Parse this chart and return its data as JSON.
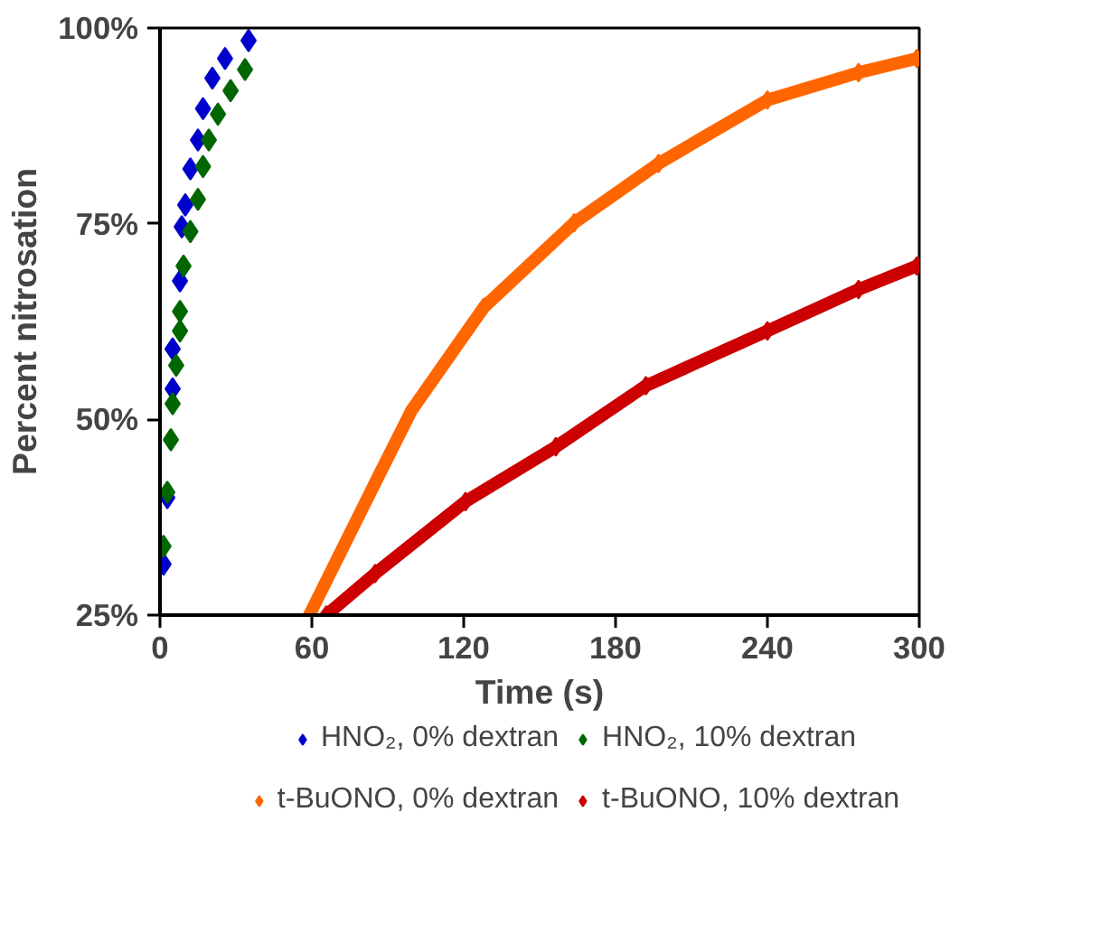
{
  "chart_data": {
    "type": "scatter",
    "xlabel": "Time (s)",
    "ylabel": "Percent nitrosation",
    "xlim": [
      0,
      300
    ],
    "xticks": [
      0,
      60,
      120,
      180,
      240,
      300
    ],
    "ylim": [
      25,
      100
    ],
    "yticks": [
      {
        "value": 25,
        "label": "25%"
      },
      {
        "value": 50,
        "label": "50%"
      },
      {
        "value": 75,
        "label": "75%"
      },
      {
        "value": 100,
        "label": "100%"
      }
    ],
    "grid": false,
    "legend": "bottom",
    "marker": "diamond",
    "series": [
      {
        "name": "HNO₂, 0% dextran",
        "color": "#0000cc",
        "x": [
          1.4,
          2.9,
          5,
          5,
          7.9,
          8.6,
          10,
          12,
          15,
          17,
          20.7,
          25.7,
          35
        ],
        "values": [
          31.5,
          40,
          53.9,
          59,
          67.7,
          74.6,
          77.4,
          82,
          85.7,
          89.7,
          93.6,
          96.1,
          98.4
        ]
      },
      {
        "name": "HNO₂, 10% dextran",
        "color": "#006600",
        "x": [
          1.4,
          2.9,
          4.3,
          5,
          6.4,
          7.9,
          7.9,
          9.3,
          12,
          15,
          17,
          19.3,
          22.9,
          27.9,
          33.6
        ],
        "values": [
          33.8,
          40.7,
          47.4,
          52,
          56.9,
          61.3,
          63.8,
          69.6,
          74,
          78.1,
          82.3,
          85.7,
          89,
          92,
          94.7
        ]
      },
      {
        "name": "t-BuONO, 0% dextran",
        "color": "#ff6600",
        "type": "line",
        "x": [
          59,
          70.7,
          85,
          99.3,
          127.9,
          163.6,
          197,
          240,
          276,
          299
        ],
        "values": [
          25,
          32.6,
          41.9,
          51.1,
          64.3,
          75.1,
          82.7,
          90.8,
          94.3,
          96.1
        ]
      },
      {
        "name": "t-BuONO, 10% dextran",
        "color": "#cc0000",
        "type": "line",
        "x": [
          65.7,
          85,
          120.7,
          156.4,
          192,
          240,
          276,
          299
        ],
        "values": [
          25,
          30.3,
          39.5,
          46.5,
          54.3,
          61.3,
          66.6,
          69.6
        ]
      }
    ]
  }
}
